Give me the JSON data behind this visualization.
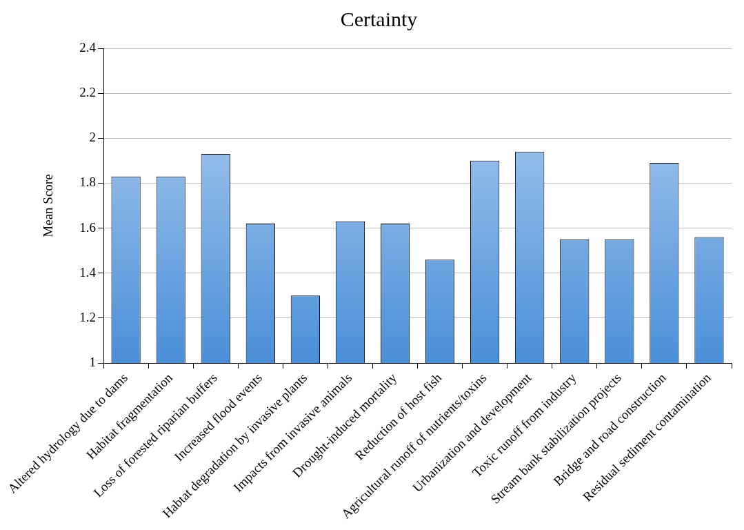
{
  "chart_data": {
    "type": "bar",
    "title": "Certainty",
    "ylabel": "Mean Score",
    "categories": [
      "Altered hydrology due to dams",
      "Habitat fragmentation",
      "Loss of forested riparian buffers",
      "Increased flood events",
      "Habtat degradation by invasive plants",
      "Impacts from invasive animals",
      "Drought-induced mortality",
      "Reduction of host fish",
      "Agricultural runoff of nutrients/toxins",
      "Urbanization and development",
      "Toxic runoff from industry",
      "Stream bank stabilization projects",
      "Bridge and road construction",
      "Residual sediment contamination"
    ],
    "values": [
      1.83,
      1.83,
      1.93,
      1.62,
      1.3,
      1.63,
      1.62,
      1.46,
      1.9,
      1.94,
      1.55,
      1.55,
      1.89,
      1.56
    ],
    "color": "#4a8fd9",
    "ylim": [
      1,
      2.4
    ],
    "yticks": [
      1,
      1.2,
      1.4,
      1.6,
      1.8,
      2,
      2.2,
      2.4
    ],
    "grid": "y",
    "legend": false
  }
}
